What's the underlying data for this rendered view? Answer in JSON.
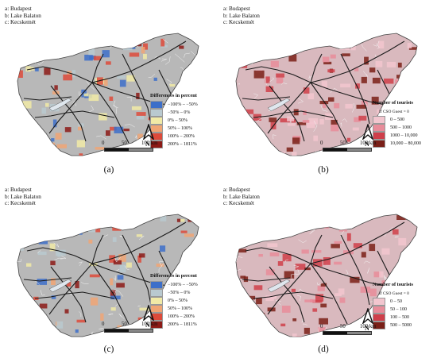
{
  "places": [
    "a: Budapest",
    "b: Lake Balaton",
    "c: Kecskemét"
  ],
  "scale_labels": [
    "0",
    "50",
    "100 km"
  ],
  "north_label": "N",
  "colors": {
    "map_gray": "#b8b8b8",
    "road": "#1a1a1a",
    "boundary": "#f5f5f5"
  },
  "panels": [
    {
      "caption": "(a)",
      "legend_title": "Differences in percent",
      "legend_note": "",
      "legend": [
        {
          "label": "−100% – −50%",
          "color": "#3d6fc9"
        },
        {
          "label": "−50% – 0%",
          "color": "#b9c9cf"
        },
        {
          "label": "0% – 50%",
          "color": "#f1eaa6"
        },
        {
          "label": "50% – 100%",
          "color": "#f0a574"
        },
        {
          "label": "100% – 200%",
          "color": "#dd4a3a"
        },
        {
          "label": "200% – 1811%",
          "color": "#8c1a16"
        }
      ]
    },
    {
      "caption": "(b)",
      "legend_title": "Number of tourists",
      "legend_note": "If CSO Guest = 0",
      "legend": [
        {
          "label": "0 – 500",
          "color": "#f2c6cf"
        },
        {
          "label": "500 – 1000",
          "color": "#e88c9a"
        },
        {
          "label": "1000 – 10,000",
          "color": "#cf3f4a"
        },
        {
          "label": "10,000 – 80,000",
          "color": "#7a2018"
        }
      ]
    },
    {
      "caption": "(c)",
      "legend_title": "Differences in percent",
      "legend_note": "",
      "legend": [
        {
          "label": "−100% – −50%",
          "color": "#3d6fc9"
        },
        {
          "label": "−50% – 0%",
          "color": "#b9c9cf"
        },
        {
          "label": "0% – 50%",
          "color": "#f1eaa6"
        },
        {
          "label": "50% – 100%",
          "color": "#f0a574"
        },
        {
          "label": "100% – 200%",
          "color": "#dd4a3a"
        },
        {
          "label": "200% – 1811%",
          "color": "#8c1a16"
        }
      ]
    },
    {
      "caption": "(d)",
      "legend_title": "Number of tourists",
      "legend_note": "If CSO Guest = 0",
      "legend": [
        {
          "label": "0 – 50",
          "color": "#f2c6cf"
        },
        {
          "label": "50 – 100",
          "color": "#e88c9a"
        },
        {
          "label": "100 – 500",
          "color": "#cf3f4a"
        },
        {
          "label": "500 – 5000",
          "color": "#7a2018"
        }
      ]
    }
  ]
}
